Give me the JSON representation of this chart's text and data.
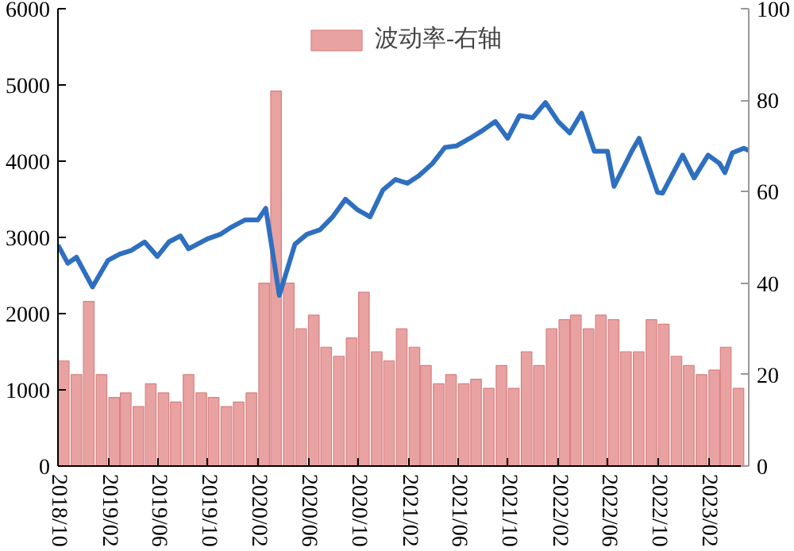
{
  "chart_data": {
    "type": "line",
    "xlim": [
      "2018-10-01",
      "2023-05-10"
    ],
    "xticks": [
      {
        "value": "2018-10-01",
        "label": "2018/10"
      },
      {
        "value": "2019-02-01",
        "label": "2019/02"
      },
      {
        "value": "2019-06-01",
        "label": "2019/06"
      },
      {
        "value": "2019-10-01",
        "label": "2019/10"
      },
      {
        "value": "2020-02-01",
        "label": "2020/02"
      },
      {
        "value": "2020-06-01",
        "label": "2020/06"
      },
      {
        "value": "2020-10-01",
        "label": "2020/10"
      },
      {
        "value": "2021-02-01",
        "label": "2021/02"
      },
      {
        "value": "2021-06-01",
        "label": "2021/06"
      },
      {
        "value": "2021-10-01",
        "label": "2021/10"
      },
      {
        "value": "2022-02-01",
        "label": "2022/02"
      },
      {
        "value": "2022-06-01",
        "label": "2022/06"
      },
      {
        "value": "2022-10-01",
        "label": "2022/10"
      },
      {
        "value": "2023-02-01",
        "label": "2023/02"
      }
    ],
    "ylim": [
      0,
      6000
    ],
    "yticks": [
      0,
      1000,
      2000,
      3000,
      4000,
      5000,
      6000
    ],
    "y2lim": [
      0,
      100
    ],
    "y2ticks": [
      0,
      20,
      40,
      60,
      80,
      100
    ],
    "grid": false,
    "legend": "top",
    "marker": "none",
    "line_style": "solid",
    "series": [
      {
        "name": "波动率-右轴",
        "type": "bar",
        "axis": "y2",
        "color": "#e8a2a2",
        "x": [
          "2018-10-15",
          "2018-11-15",
          "2018-12-15",
          "2019-01-15",
          "2019-02-15",
          "2019-03-15",
          "2019-04-15",
          "2019-05-15",
          "2019-06-15",
          "2019-07-15",
          "2019-08-15",
          "2019-09-15",
          "2019-10-15",
          "2019-11-15",
          "2019-12-15",
          "2020-01-15",
          "2020-02-15",
          "2020-03-15",
          "2020-04-15",
          "2020-05-15",
          "2020-06-15",
          "2020-07-15",
          "2020-08-15",
          "2020-09-15",
          "2020-10-15",
          "2020-11-15",
          "2020-12-15",
          "2021-01-15",
          "2021-02-15",
          "2021-03-15",
          "2021-04-15",
          "2021-05-15",
          "2021-06-15",
          "2021-07-15",
          "2021-08-15",
          "2021-09-15",
          "2021-10-15",
          "2021-11-15",
          "2021-12-15",
          "2022-01-15",
          "2022-02-15",
          "2022-03-15",
          "2022-04-15",
          "2022-05-15",
          "2022-06-15",
          "2022-07-15",
          "2022-08-15",
          "2022-09-15",
          "2022-10-15",
          "2022-11-15",
          "2022-12-15",
          "2023-01-15",
          "2023-02-15",
          "2023-03-15",
          "2023-04-15"
        ],
        "values": [
          23,
          20,
          36,
          20,
          15,
          16,
          13,
          18,
          16,
          14,
          20,
          16,
          15,
          13,
          14,
          16,
          40,
          82,
          40,
          30,
          33,
          26,
          24,
          28,
          38,
          25,
          23,
          30,
          26,
          22,
          18,
          20,
          18,
          19,
          17,
          22,
          17,
          25,
          22,
          30,
          32,
          33,
          30,
          33,
          32,
          25,
          25,
          32,
          31,
          24,
          22,
          20,
          21,
          26,
          17
        ]
      },
      {
        "color": "#2e6fc0",
        "x": [
          "2018-10-01",
          "2018-10-25",
          "2018-11-15",
          "2018-12-24",
          "2019-01-31",
          "2019-02-28",
          "2019-03-29",
          "2019-04-30",
          "2019-05-31",
          "2019-06-28",
          "2019-07-26",
          "2019-08-15",
          "2019-09-30",
          "2019-10-31",
          "2019-11-29",
          "2019-12-31",
          "2020-01-31",
          "2020-02-19",
          "2020-03-23",
          "2020-04-30",
          "2020-05-29",
          "2020-06-30",
          "2020-07-31",
          "2020-08-31",
          "2020-09-30",
          "2020-10-30",
          "2020-11-30",
          "2020-12-31",
          "2021-01-29",
          "2021-02-26",
          "2021-03-31",
          "2021-04-30",
          "2021-05-28",
          "2021-06-30",
          "2021-07-30",
          "2021-08-31",
          "2021-09-30",
          "2021-10-29",
          "2021-11-30",
          "2021-12-31",
          "2022-01-31",
          "2022-02-28",
          "2022-03-29",
          "2022-04-29",
          "2022-05-31",
          "2022-06-16",
          "2022-07-29",
          "2022-08-16",
          "2022-09-30",
          "2022-10-12",
          "2022-11-30",
          "2022-12-28",
          "2023-01-31",
          "2023-02-28",
          "2023-03-13",
          "2023-03-31",
          "2023-04-28",
          "2023-05-10"
        ],
        "values": [
          2900,
          2660,
          2740,
          2350,
          2700,
          2780,
          2830,
          2940,
          2750,
          2940,
          3020,
          2850,
          2980,
          3040,
          3140,
          3230,
          3230,
          3380,
          2240,
          2910,
          3040,
          3100,
          3270,
          3500,
          3360,
          3270,
          3620,
          3760,
          3710,
          3810,
          3970,
          4180,
          4200,
          4300,
          4400,
          4520,
          4300,
          4600,
          4570,
          4770,
          4520,
          4370,
          4630,
          4130,
          4130,
          3670,
          4130,
          4300,
          3590,
          3580,
          4080,
          3780,
          4080,
          3970,
          3850,
          4110,
          4170,
          4140
        ]
      }
    ]
  }
}
